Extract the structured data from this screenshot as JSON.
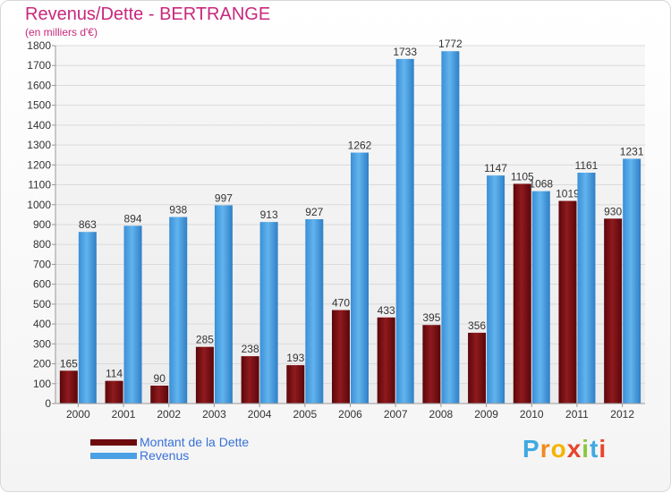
{
  "header": {
    "title": "Revenus/Dette - BERTRANGE",
    "subtitle": "(en milliers d'€)"
  },
  "legend": {
    "items": [
      {
        "label": "Montant de la Dette",
        "color": "#7a0f12"
      },
      {
        "label": "Revenus",
        "color": "#4aa0e4"
      }
    ]
  },
  "logo": {
    "text": "Proxiti",
    "letter_colors": [
      "#3fa9e0",
      "#f08a1c",
      "#f5b400",
      "#e8442c",
      "#8cc63f",
      "#3fa9e0",
      "#e8442c"
    ]
  },
  "chart_data": {
    "type": "bar",
    "categories": [
      "2000",
      "2001",
      "2002",
      "2003",
      "2004",
      "2005",
      "2006",
      "2007",
      "2008",
      "2009",
      "2010",
      "2011",
      "2012"
    ],
    "series": [
      {
        "name": "Montant de la Dette",
        "color": "#7a0f12",
        "values": [
          165,
          114,
          90,
          285,
          238,
          193,
          470,
          433,
          395,
          356,
          1105,
          1019,
          930
        ]
      },
      {
        "name": "Revenus",
        "color": "#4aa0e4",
        "values": [
          863,
          894,
          938,
          997,
          913,
          927,
          1262,
          1733,
          1772,
          1147,
          1068,
          1161,
          1231
        ]
      }
    ],
    "ylim": [
      0,
      1800
    ],
    "yticks": [
      0,
      100,
      200,
      300,
      400,
      500,
      600,
      700,
      800,
      900,
      1000,
      1100,
      1200,
      1300,
      1400,
      1500,
      1600,
      1700,
      1800
    ],
    "grid": true,
    "legend_position": "bottom-left"
  }
}
